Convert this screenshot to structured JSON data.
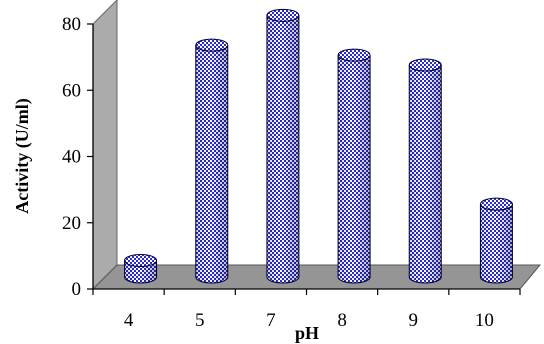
{
  "chart_data": {
    "type": "bar",
    "style": "3d-cylinder",
    "categories": [
      "4",
      "5",
      "7",
      "8",
      "9",
      "10"
    ],
    "values": [
      5,
      70,
      79,
      67,
      64,
      22
    ],
    "xlabel": "pH",
    "ylabel": "Activity (U/ml)",
    "ylim": [
      0,
      80
    ],
    "yticks": [
      "0",
      "20",
      "40",
      "60",
      "80"
    ],
    "grid": false,
    "legend": "none",
    "colors": {
      "bar": "#2a2ad4",
      "bar_light": "#ffffff",
      "back_wall": "#ababab",
      "floor": "#959595",
      "axis": "#000000"
    }
  }
}
